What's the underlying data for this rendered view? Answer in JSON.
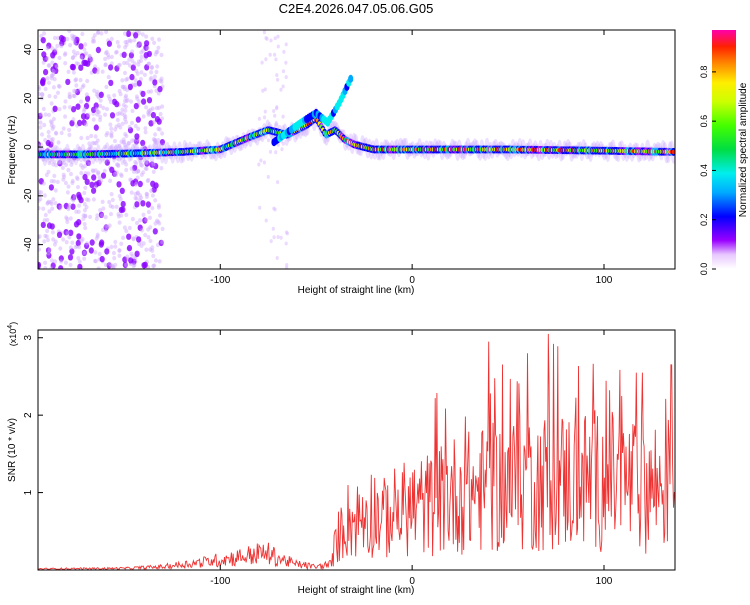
{
  "title": "C2E4.2026.047.05.06.G05",
  "chart_data": [
    {
      "type": "heatmap",
      "name": "spectrogram",
      "xlabel": "Height of straight line (km)",
      "ylabel": "Frequency (Hz)",
      "xlim": [
        -195,
        137
      ],
      "ylim": [
        -50,
        48
      ],
      "xticks": [
        -100,
        0,
        100
      ],
      "yticks": [
        -40,
        -20,
        0,
        20,
        40
      ],
      "colorbar": {
        "label": "Normalized spectral amplitude",
        "range": [
          0,
          0.97
        ],
        "ticks": [
          0.0,
          0.2,
          0.4,
          0.6,
          0.8
        ]
      },
      "ridge": {
        "x": [
          -195,
          -170,
          -140,
          -120,
          -100,
          -85,
          -75,
          -65,
          -55,
          -50,
          -45,
          -40,
          -35,
          -30,
          -25,
          -20,
          0,
          50,
          100,
          137
        ],
        "freq": [
          -3,
          -3,
          -2.5,
          -2,
          -1,
          4,
          7,
          5,
          9,
          12,
          5,
          7,
          3,
          1,
          0,
          -1,
          -1,
          -1,
          -1.5,
          -2
        ]
      },
      "side_branch": {
        "x": [
          -72,
          -65,
          -58,
          -50,
          -44,
          -38,
          -32
        ],
        "freq": [
          2,
          6,
          10,
          14,
          10,
          18,
          28
        ]
      },
      "noise_region": [
        -195,
        -130
      ]
    },
    {
      "type": "line",
      "name": "snr",
      "xlabel": "Height of straight line (km)",
      "ylabel": "SNR (10 * v/v)",
      "multiplier_label": "(x10",
      "multiplier_exp": "4",
      "multiplier_close": ")",
      "xlim": [
        -195,
        137
      ],
      "ylim": [
        0,
        3.1
      ],
      "xticks": [
        -100,
        0,
        100
      ],
      "yticks": [
        1,
        2,
        3
      ],
      "color": "#ee3333",
      "envelope": {
        "x": [
          -195,
          -150,
          -130,
          -110,
          -90,
          -80,
          -75,
          -70,
          -60,
          -50,
          -42,
          -40,
          -37,
          -35,
          -30,
          -25,
          -20,
          -15,
          -10,
          0,
          10,
          20,
          40,
          60,
          80,
          100,
          120,
          137
        ],
        "y": [
          0.02,
          0.03,
          0.06,
          0.14,
          0.24,
          0.3,
          0.3,
          0.22,
          0.1,
          0.05,
          0.1,
          0.45,
          0.65,
          0.85,
          0.8,
          0.95,
          1.0,
          0.85,
          0.95,
          1.05,
          1.1,
          1.25,
          1.35,
          1.45,
          1.5,
          1.5,
          1.4,
          1.45
        ]
      },
      "peaks": [
        {
          "x": 40,
          "y": 2.95
        },
        {
          "x": 60,
          "y": 2.8
        },
        {
          "x": 71,
          "y": 3.05
        },
        {
          "x": 120,
          "y": 2.55
        },
        {
          "x": 135,
          "y": 2.65
        }
      ]
    }
  ]
}
